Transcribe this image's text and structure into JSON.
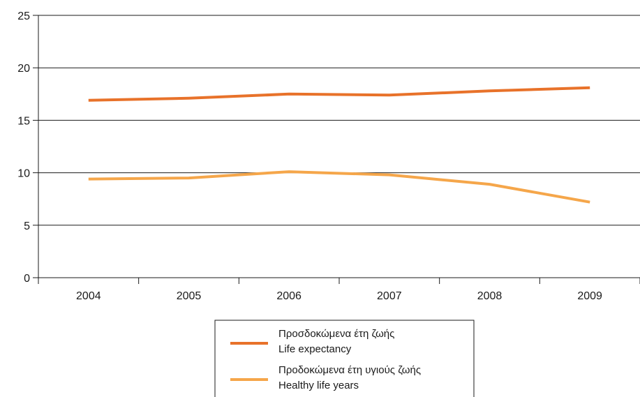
{
  "chart_data": {
    "type": "line",
    "categories": [
      "2004",
      "2005",
      "2006",
      "2007",
      "2008",
      "2009"
    ],
    "ylim": [
      0,
      25
    ],
    "yticks": [
      0,
      5,
      10,
      15,
      20,
      25
    ],
    "grid": true,
    "legend_position": "bottom-center",
    "series": [
      {
        "name_el": "Προσδοκώμενα έτη ζωής",
        "name_en": "Life expectancy",
        "color": "#e8722a",
        "values": [
          16.9,
          17.1,
          17.5,
          17.4,
          17.8,
          18.1
        ]
      },
      {
        "name_el": "Προδοκώμενα έτη υγιούς ζωής",
        "name_en": "Healthy life years",
        "color": "#f5a64a",
        "values": [
          9.4,
          9.5,
          10.1,
          9.8,
          8.9,
          7.2
        ]
      }
    ]
  }
}
